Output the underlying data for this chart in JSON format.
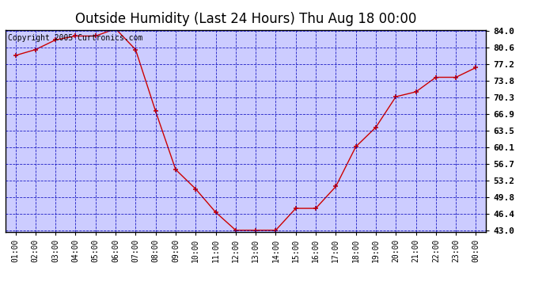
{
  "title": "Outside Humidity (Last 24 Hours) Thu Aug 18 00:00",
  "copyright": "Copyright 2005 Curtronics.com",
  "x_labels": [
    "01:00",
    "02:00",
    "03:00",
    "04:00",
    "05:00",
    "06:00",
    "07:00",
    "08:00",
    "09:00",
    "10:00",
    "11:00",
    "12:00",
    "13:00",
    "14:00",
    "15:00",
    "16:00",
    "17:00",
    "18:00",
    "19:00",
    "20:00",
    "21:00",
    "22:00",
    "23:00",
    "00:00"
  ],
  "y_values": [
    79.0,
    80.2,
    82.2,
    83.0,
    83.0,
    84.5,
    80.2,
    67.5,
    55.5,
    51.5,
    46.7,
    43.0,
    43.0,
    43.0,
    47.5,
    47.5,
    52.0,
    60.2,
    64.2,
    70.5,
    71.5,
    74.5,
    74.5,
    76.5
  ],
  "line_color": "#cc0000",
  "marker_color": "#cc0000",
  "bg_color": "#ccccff",
  "grid_color": "#0000bb",
  "plot_border_color": "#000000",
  "y_min": 43.0,
  "y_max": 84.0,
  "y_ticks": [
    43.0,
    46.4,
    49.8,
    53.2,
    56.7,
    60.1,
    63.5,
    66.9,
    70.3,
    73.8,
    77.2,
    80.6,
    84.0
  ],
  "title_fontsize": 12,
  "copyright_fontsize": 7,
  "tick_fontsize": 8,
  "xtick_fontsize": 7
}
